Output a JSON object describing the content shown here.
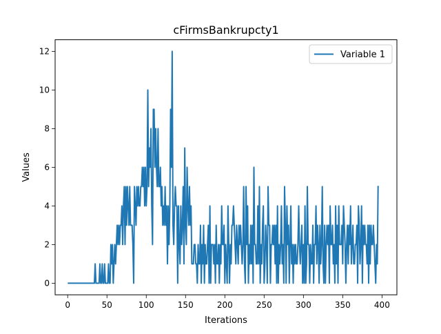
{
  "chart_data": {
    "type": "line",
    "title": "cFirmsBankrupcty1",
    "xlabel": "Iterations",
    "ylabel": "Values",
    "xlim": [
      -15.95,
      418.95
    ],
    "ylim": [
      -0.6,
      12.6
    ],
    "xticks": [
      0,
      50,
      100,
      150,
      200,
      250,
      300,
      350,
      400
    ],
    "yticks": [
      0,
      2,
      4,
      6,
      8,
      10,
      12
    ],
    "grid": false,
    "legend": "top-right",
    "colors": {
      "series": "#1f77b4",
      "axes": "#000000"
    },
    "series": [
      {
        "name": "Variable 1",
        "x_start": 1,
        "values": [
          0,
          0,
          0,
          0,
          0,
          0,
          0,
          0,
          0,
          0,
          0,
          0,
          0,
          0,
          0,
          0,
          0,
          0,
          0,
          0,
          0,
          0,
          0,
          0,
          0,
          0,
          0,
          0,
          0,
          0,
          0,
          0,
          0,
          0,
          1,
          0,
          0,
          0,
          0,
          0,
          1,
          0,
          0,
          1,
          0,
          0,
          1,
          0,
          0,
          0,
          0,
          1,
          0,
          0,
          2,
          1,
          2,
          0,
          1,
          2,
          1,
          2,
          3,
          2,
          3,
          2,
          3,
          3,
          4,
          2,
          4,
          5,
          2,
          5,
          3,
          5,
          4,
          3,
          5,
          3,
          3,
          3,
          2,
          0,
          5,
          4,
          3,
          5,
          4,
          5,
          4,
          4,
          5,
          5,
          6,
          5,
          6,
          4,
          6,
          4,
          5,
          10,
          5,
          7,
          6,
          8,
          4,
          2,
          9,
          9,
          6,
          8,
          6,
          5,
          8,
          5,
          5,
          6,
          4,
          5,
          3,
          4,
          3,
          5,
          3,
          4,
          1,
          4,
          2,
          4,
          9,
          6,
          12,
          3,
          2,
          4,
          5,
          4,
          4,
          0,
          4,
          2,
          1,
          4,
          2,
          3,
          5,
          1,
          7,
          3,
          2,
          6,
          4,
          3,
          5,
          3,
          4,
          1,
          1,
          1,
          2,
          2,
          1,
          1,
          0,
          2,
          1,
          1,
          3,
          0,
          2,
          1,
          3,
          0,
          2,
          1,
          1,
          2,
          3,
          0,
          4,
          0,
          2,
          2,
          2,
          1,
          2,
          0,
          3,
          1,
          1,
          2,
          0,
          2,
          1,
          4,
          2,
          2,
          3,
          0,
          2,
          1,
          0,
          4,
          2,
          0,
          2,
          1,
          3,
          3,
          4,
          3,
          2,
          1,
          3,
          2,
          1,
          3,
          2,
          3,
          2,
          1,
          2,
          5,
          1,
          0,
          5,
          2,
          4,
          0,
          2,
          1,
          3,
          1,
          3,
          0,
          6,
          2,
          2,
          1,
          1,
          4,
          1,
          5,
          0,
          2,
          1,
          3,
          4,
          0,
          1,
          3,
          2,
          0,
          5,
          3,
          3,
          0,
          2,
          2,
          3,
          2,
          3,
          1,
          3,
          0,
          4,
          0,
          2,
          1,
          2,
          4,
          1,
          2,
          0,
          5,
          3,
          0,
          4,
          2,
          3,
          0,
          2,
          4,
          1,
          2,
          0,
          2,
          1,
          2,
          1,
          1,
          2,
          4,
          2,
          1,
          2,
          3,
          0,
          2,
          0,
          4,
          0,
          1,
          5,
          2,
          2,
          0,
          2,
          1,
          1,
          3,
          0,
          2,
          2,
          4,
          1,
          3,
          2,
          0,
          3,
          1,
          2,
          5,
          1,
          0,
          3,
          0,
          2,
          3,
          2,
          3,
          0,
          4,
          2,
          2,
          3,
          1,
          2,
          0,
          4,
          1,
          3,
          0,
          4,
          2,
          2,
          2,
          3,
          1,
          4,
          3,
          2,
          0,
          2,
          3,
          1,
          3,
          2,
          4,
          1,
          2,
          3,
          1,
          1,
          2,
          2,
          3,
          0,
          4,
          3,
          1,
          2,
          4,
          0,
          3,
          2,
          3,
          2,
          2,
          1,
          3,
          0,
          3,
          1,
          3,
          2,
          2,
          3,
          2,
          1,
          0,
          2,
          1,
          5
        ]
      }
    ]
  }
}
